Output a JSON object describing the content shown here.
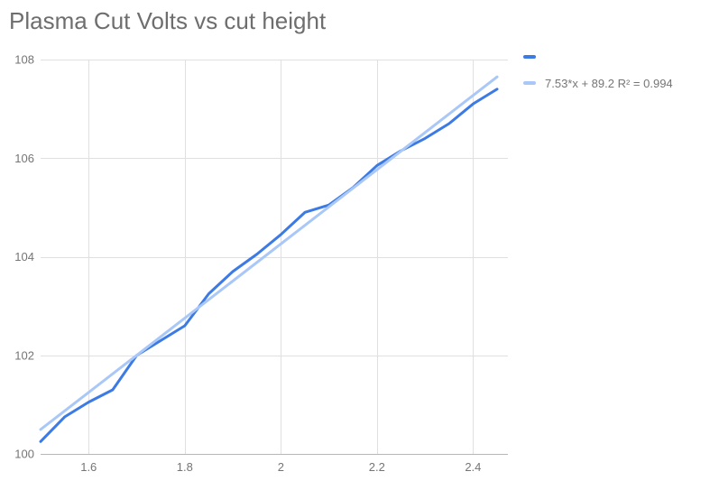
{
  "chart_data": {
    "type": "line",
    "title": "Plasma Cut Volts vs cut height",
    "xlabel": "",
    "ylabel": "",
    "xlim": [
      1.5,
      2.45
    ],
    "ylim": [
      100,
      108
    ],
    "grid": true,
    "legend_position": "right",
    "x": [
      1.5,
      1.55,
      1.6,
      1.65,
      1.7,
      1.75,
      1.8,
      1.85,
      1.9,
      1.95,
      2.0,
      2.05,
      2.1,
      2.15,
      2.2,
      2.25,
      2.3,
      2.35,
      2.4,
      2.45
    ],
    "series": [
      {
        "name": "",
        "values": [
          100.25,
          100.75,
          101.05,
          101.3,
          102.0,
          102.3,
          102.6,
          103.25,
          103.7,
          104.05,
          104.45,
          104.9,
          105.05,
          105.4,
          105.85,
          106.15,
          106.4,
          106.7,
          107.1,
          107.4
        ]
      }
    ],
    "trendline": {
      "slope": 7.53,
      "intercept": 89.2,
      "r_squared": 0.994
    },
    "x_ticks": [
      {
        "v": 1.6,
        "label": "1.6"
      },
      {
        "v": 1.8,
        "label": "1.8"
      },
      {
        "v": 2.0,
        "label": "2"
      },
      {
        "v": 2.2,
        "label": "2.2"
      },
      {
        "v": 2.4,
        "label": "2.4"
      }
    ],
    "y_ticks": [
      {
        "v": 100,
        "label": "100"
      },
      {
        "v": 102,
        "label": "102"
      },
      {
        "v": 104,
        "label": "104"
      },
      {
        "v": 106,
        "label": "106"
      },
      {
        "v": 108,
        "label": "108"
      }
    ],
    "legend": {
      "series_label": "",
      "trendline_label": "7.53*x + 89.2 R² = 0.994"
    },
    "colors": {
      "series": "#3c7ae4",
      "trendline": "#aac8f7",
      "grid": "#e0e0e0",
      "baseline": "#b7b7b7",
      "text": "#757575",
      "title": "#6e6e6e",
      "background": "#ffffff"
    }
  }
}
